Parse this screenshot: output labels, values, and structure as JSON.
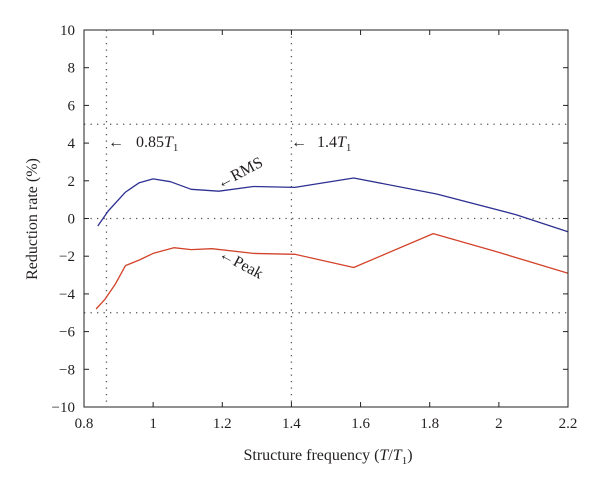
{
  "chart_data": {
    "type": "line",
    "xlabel": "Structure frequency (T/T1)",
    "ylabel": "Reduction rate (%)",
    "xlim": [
      0.8,
      2.2
    ],
    "ylim": [
      -10,
      10
    ],
    "xticks": [
      0.8,
      1,
      1.2,
      1.4,
      1.6,
      1.8,
      2,
      2.2
    ],
    "xtick_labels": [
      "0.8",
      "1",
      "1.2",
      "1.4",
      "1.6",
      "1.8",
      "2",
      "2.2"
    ],
    "yticks": [
      -10,
      -8,
      -6,
      -4,
      -2,
      0,
      2,
      4,
      6,
      8,
      10
    ],
    "ytick_labels": [
      "−10",
      "−8",
      "−6",
      "−4",
      "−2",
      "0",
      "2",
      "4",
      "6",
      "8",
      "10"
    ],
    "grid": false,
    "series": [
      {
        "name": "RMS",
        "color": "#2e3192",
        "x": [
          0.84,
          0.87,
          0.92,
          0.96,
          1.0,
          1.05,
          1.11,
          1.19,
          1.29,
          1.41,
          1.58,
          1.82,
          2.05,
          2.2
        ],
        "y": [
          -0.4,
          0.4,
          1.4,
          1.9,
          2.1,
          1.95,
          1.55,
          1.45,
          1.7,
          1.65,
          2.15,
          1.3,
          0.2,
          -0.7
        ]
      },
      {
        "name": "Peak",
        "color": "#d2432a",
        "x": [
          0.835,
          0.86,
          0.89,
          0.92,
          0.96,
          1.0,
          1.06,
          1.11,
          1.17,
          1.29,
          1.41,
          1.58,
          1.81,
          2.0,
          2.2
        ],
        "y": [
          -4.8,
          -4.3,
          -3.5,
          -2.5,
          -2.2,
          -1.85,
          -1.55,
          -1.65,
          -1.6,
          -1.85,
          -1.9,
          -2.6,
          -0.8,
          -1.8,
          -2.9
        ]
      }
    ],
    "reference_lines": {
      "horizontal": [
        5,
        0,
        -5
      ],
      "vertical": [
        0.865,
        1.4
      ]
    },
    "annotations": [
      {
        "id": "t085",
        "arrow": "←",
        "text": "0.85",
        "var": "T",
        "sub": "1",
        "x": 0.865,
        "y": 4.2
      },
      {
        "id": "t14",
        "arrow": "←",
        "text": "1.4",
        "var": "T",
        "sub": "1",
        "x": 1.4,
        "y": 4.2
      },
      {
        "id": "rms",
        "arrow": "←",
        "text": "RMS"
      },
      {
        "id": "peak",
        "arrow": "←",
        "text": "Peak"
      }
    ],
    "xlabel_parts": {
      "prefix": "Structure frequency (",
      "num": "T",
      "slash": "/",
      "den": "T",
      "sub": "1",
      "suffix": ")"
    },
    "colors": {
      "axis": "#231f20",
      "rms": "#2e3192",
      "peak": "#d2432a",
      "ref": "#555555"
    }
  }
}
